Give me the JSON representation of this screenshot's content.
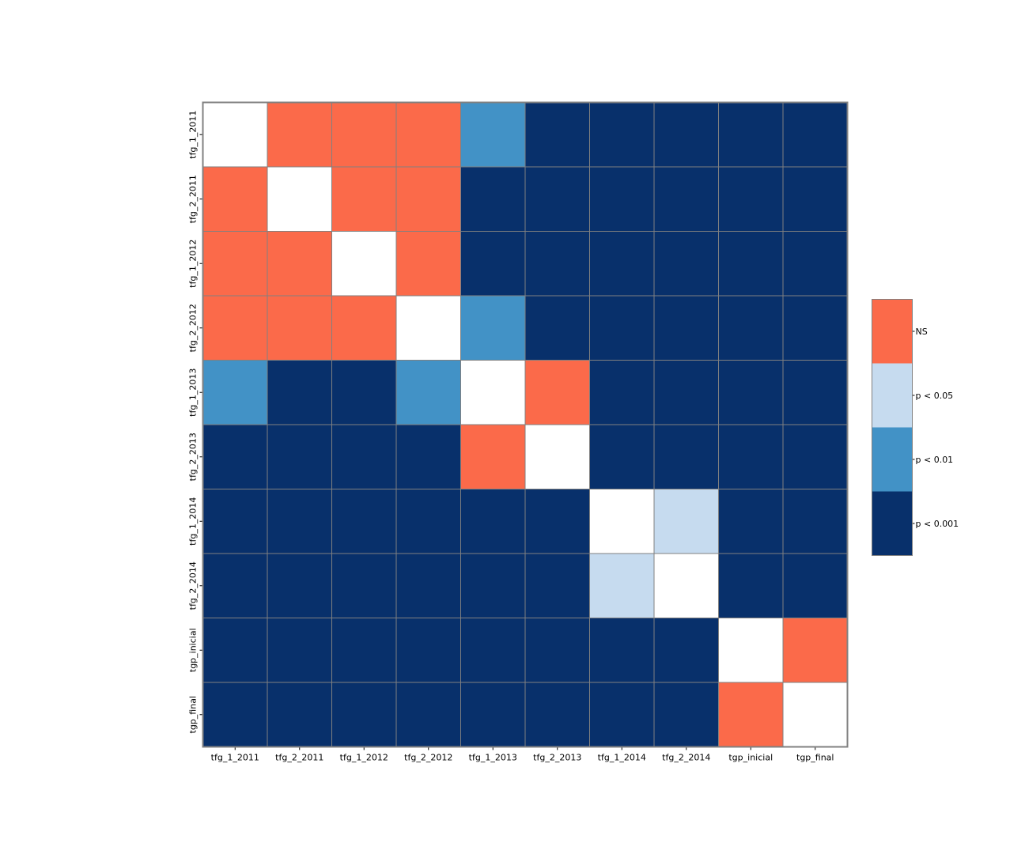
{
  "chart_data": {
    "type": "heatmap",
    "title": "",
    "xlabel": "",
    "ylabel": "",
    "labels": [
      "tfg_1_2011",
      "tfg_2_2011",
      "tfg_1_2012",
      "tfg_2_2012",
      "tfg_1_2013",
      "tfg_2_2013",
      "tfg_1_2014",
      "tfg_2_2014",
      "tgp_inicial",
      "tgp_final"
    ],
    "categories_legend": [
      {
        "key": "NS",
        "label": "NS",
        "color": "#fb6a4a"
      },
      {
        "key": "p05",
        "label": "p < 0.05",
        "color": "#c6dbef"
      },
      {
        "key": "p01",
        "label": "p < 0.01",
        "color": "#4292c6"
      },
      {
        "key": "p001",
        "label": "p < 0.001",
        "color": "#08306b"
      }
    ],
    "diagonal_color": "#ffffff",
    "grid_color": "#808080",
    "matrix": [
      [
        "diag",
        "NS",
        "NS",
        "NS",
        "p01",
        "p001",
        "p001",
        "p001",
        "p001",
        "p001"
      ],
      [
        "NS",
        "diag",
        "NS",
        "NS",
        "p001",
        "p001",
        "p001",
        "p001",
        "p001",
        "p001"
      ],
      [
        "NS",
        "NS",
        "diag",
        "NS",
        "p001",
        "p001",
        "p001",
        "p001",
        "p001",
        "p001"
      ],
      [
        "NS",
        "NS",
        "NS",
        "diag",
        "p01",
        "p001",
        "p001",
        "p001",
        "p001",
        "p001"
      ],
      [
        "p01",
        "p001",
        "p001",
        "p01",
        "diag",
        "NS",
        "p001",
        "p001",
        "p001",
        "p001"
      ],
      [
        "p001",
        "p001",
        "p001",
        "p001",
        "NS",
        "diag",
        "p001",
        "p001",
        "p001",
        "p001"
      ],
      [
        "p001",
        "p001",
        "p001",
        "p001",
        "p001",
        "p001",
        "diag",
        "p05",
        "p001",
        "p001"
      ],
      [
        "p001",
        "p001",
        "p001",
        "p001",
        "p001",
        "p001",
        "p05",
        "diag",
        "p001",
        "p001"
      ],
      [
        "p001",
        "p001",
        "p001",
        "p001",
        "p001",
        "p001",
        "p001",
        "p001",
        "diag",
        "NS"
      ],
      [
        "p001",
        "p001",
        "p001",
        "p001",
        "p001",
        "p001",
        "p001",
        "p001",
        "NS",
        "diag"
      ]
    ]
  }
}
